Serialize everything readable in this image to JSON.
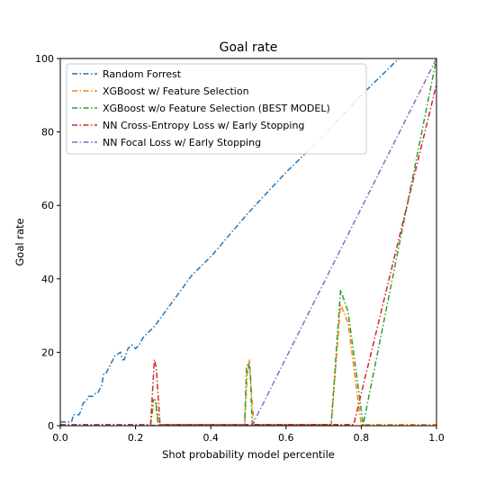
{
  "chart_data": {
    "type": "line",
    "title": "Goal rate",
    "xlabel": "Shot probability model percentile",
    "ylabel": "Goal rate",
    "xlim": [
      0.0,
      1.0
    ],
    "ylim": [
      0,
      100
    ],
    "xticks": [
      0.0,
      0.2,
      0.4,
      0.6,
      0.8,
      1.0
    ],
    "xtick_labels": [
      "0.0",
      "0.2",
      "0.4",
      "0.6",
      "0.8",
      "1.0"
    ],
    "yticks": [
      0,
      20,
      40,
      60,
      80,
      100
    ],
    "ytick_labels": [
      "0",
      "20",
      "40",
      "60",
      "80",
      "100"
    ],
    "grid": false,
    "legend_position": "upper-left",
    "line_style": "dash-dot",
    "series": [
      {
        "name": "Random Forrest",
        "color": "#1f77b4",
        "x": [
          0.0,
          0.03,
          0.035,
          0.05,
          0.055,
          0.06,
          0.07,
          0.075,
          0.085,
          0.095,
          0.1,
          0.105,
          0.11,
          0.115,
          0.12,
          0.125,
          0.13,
          0.14,
          0.145,
          0.16,
          0.165,
          0.17,
          0.18,
          0.19,
          0.2,
          0.21,
          0.22,
          0.23,
          0.25,
          0.3,
          0.35,
          0.4,
          0.5,
          0.6,
          0.7,
          0.8,
          0.9
        ],
        "y": [
          1,
          1,
          3,
          3,
          4,
          6,
          7,
          8,
          8,
          9,
          9,
          10,
          11,
          14,
          14,
          15,
          16,
          18,
          19,
          20,
          18,
          18,
          21,
          22,
          21,
          22,
          24,
          25,
          27,
          34,
          41,
          46,
          58,
          69,
          79,
          90,
          100
        ]
      },
      {
        "name": "XGBoost w/ Feature Selection",
        "color": "#ff7f0e",
        "x": [
          0.0,
          0.24,
          0.248,
          0.255,
          0.262,
          0.49,
          0.497,
          0.503,
          0.51,
          0.515,
          0.72,
          0.745,
          0.765,
          0.79,
          0.8,
          1.0
        ],
        "y": [
          0.3,
          0.3,
          6,
          6,
          0.3,
          0.3,
          14,
          18,
          6,
          0.3,
          0.3,
          33,
          28,
          8,
          0.3,
          0.3
        ]
      },
      {
        "name": "XGBoost w/o Feature Selection (BEST MODEL)",
        "color": "#2ca02c",
        "x": [
          0.0,
          0.24,
          0.247,
          0.253,
          0.26,
          0.49,
          0.495,
          0.5,
          0.505,
          0.51,
          0.72,
          0.745,
          0.765,
          0.79,
          0.805,
          1.0
        ],
        "y": [
          0.2,
          0.2,
          7,
          7,
          0.2,
          0.2,
          16,
          17,
          14,
          0.2,
          0.2,
          37,
          31,
          12,
          0.2,
          100
        ]
      },
      {
        "name": "NN Cross-Entropy Loss w/ Early Stopping",
        "color": "#d62728",
        "x": [
          0.0,
          0.24,
          0.25,
          0.255,
          0.265,
          0.78,
          1.0
        ],
        "y": [
          0.3,
          0.3,
          18,
          16,
          0.3,
          0.3,
          93
        ]
      },
      {
        "name": "NN Focal Loss w/ Early Stopping",
        "color": "#9467bd",
        "x": [
          0.0,
          0.51,
          1.0
        ],
        "y": [
          0.1,
          0.1,
          100
        ]
      }
    ]
  }
}
